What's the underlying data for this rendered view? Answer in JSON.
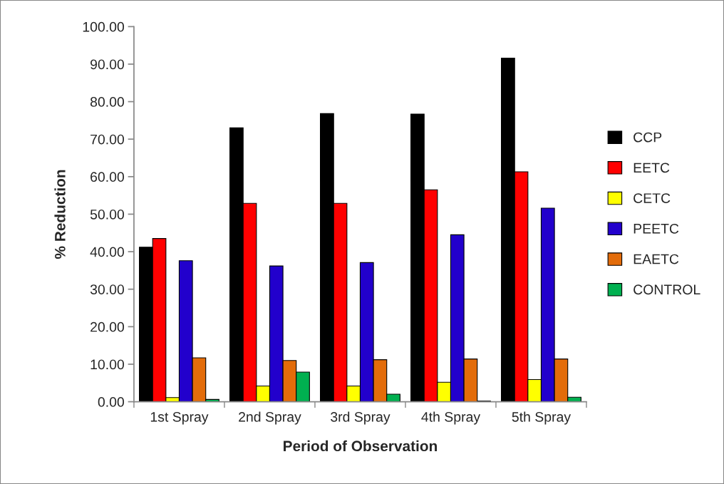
{
  "chart_data": {
    "type": "bar",
    "xlabel": "Period of Observation",
    "ylabel": "% Reduction",
    "categories": [
      "1st Spray",
      "2nd Spray",
      "3rd Spray",
      "4th Spray",
      "5th Spray"
    ],
    "series": [
      {
        "name": "CCP",
        "color": "#000000",
        "values": [
          41.2,
          73.0,
          76.8,
          76.7,
          91.6
        ]
      },
      {
        "name": "EETC",
        "color": "#ff0000",
        "values": [
          43.5,
          52.9,
          52.9,
          56.5,
          61.3
        ]
      },
      {
        "name": "CETC",
        "color": "#ffff00",
        "values": [
          1.1,
          4.2,
          4.2,
          5.2,
          5.9
        ]
      },
      {
        "name": "PEETC",
        "color": "#2200cc",
        "values": [
          37.6,
          36.2,
          37.1,
          44.5,
          51.6
        ]
      },
      {
        "name": "EAETC",
        "color": "#e36c0a",
        "values": [
          11.7,
          11.0,
          11.2,
          11.4,
          11.4
        ]
      },
      {
        "name": "CONTROL",
        "color": "#00b050",
        "values": [
          0.6,
          7.9,
          2.0,
          0.2,
          1.2
        ]
      }
    ],
    "ylim": [
      0,
      100
    ],
    "yticks": [
      {
        "value": 0,
        "label": "0.00"
      },
      {
        "value": 10,
        "label": "10.00"
      },
      {
        "value": 20,
        "label": "20.00"
      },
      {
        "value": 30,
        "label": "30.00"
      },
      {
        "value": 40,
        "label": "40.00"
      },
      {
        "value": 50,
        "label": "50.00"
      },
      {
        "value": 60,
        "label": "60.00"
      },
      {
        "value": 70,
        "label": "70.00"
      },
      {
        "value": 80,
        "label": "80.00"
      },
      {
        "value": 90,
        "label": "90.00"
      },
      {
        "value": 100,
        "label": "100.00"
      }
    ],
    "grid": false,
    "legend": "right"
  }
}
